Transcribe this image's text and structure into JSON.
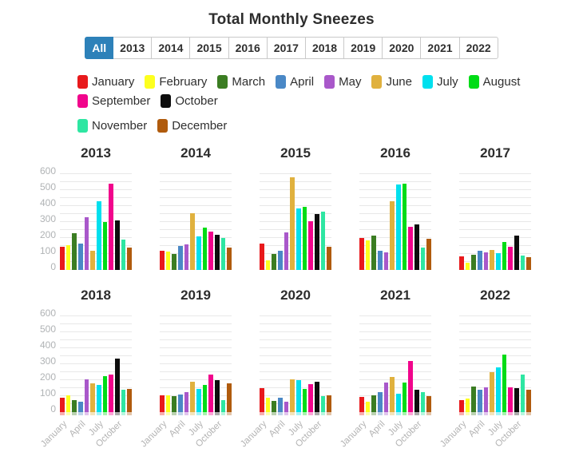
{
  "page": {
    "title": "Total Monthly Sneezes"
  },
  "tabs": {
    "active": "All",
    "items": [
      "All",
      "2013",
      "2014",
      "2015",
      "2016",
      "2017",
      "2018",
      "2019",
      "2020",
      "2021",
      "2022"
    ]
  },
  "months": [
    {
      "label": "January",
      "color": "#e8191c"
    },
    {
      "label": "February",
      "color": "#fdff1f"
    },
    {
      "label": "March",
      "color": "#3b7d22"
    },
    {
      "label": "April",
      "color": "#4a88c6"
    },
    {
      "label": "May",
      "color": "#a958ca"
    },
    {
      "label": "June",
      "color": "#e0b13e"
    },
    {
      "label": "July",
      "color": "#00e0ee"
    },
    {
      "label": "August",
      "color": "#00dc16"
    },
    {
      "label": "September",
      "color": "#f1058c"
    },
    {
      "label": "October",
      "color": "#0d0d0d"
    },
    {
      "label": "November",
      "color": "#2ee6a2"
    },
    {
      "label": "December",
      "color": "#b05b0d"
    }
  ],
  "chart_data": {
    "type": "bar",
    "title": "Total Monthly Sneezes",
    "categories": [
      "January",
      "February",
      "March",
      "April",
      "May",
      "June",
      "July",
      "August",
      "September",
      "October",
      "November",
      "December"
    ],
    "ylim": [
      0,
      600
    ],
    "yticks": [
      600,
      500,
      400,
      300,
      200,
      100,
      0
    ],
    "grid": true,
    "legend_position": "top",
    "x_tick_labels": [
      "January",
      "April",
      "July",
      "October"
    ],
    "x_tick_positions": [
      0,
      3,
      6,
      9
    ],
    "charts": [
      {
        "year": "2013",
        "show_y_axis": true,
        "show_x_labels": false,
        "values": [
          145,
          155,
          230,
          165,
          330,
          120,
          430,
          300,
          540,
          310,
          190,
          140
        ]
      },
      {
        "year": "2014",
        "show_y_axis": false,
        "show_x_labels": false,
        "values": [
          120,
          115,
          100,
          150,
          160,
          355,
          210,
          265,
          240,
          220,
          200,
          140
        ]
      },
      {
        "year": "2015",
        "show_y_axis": false,
        "show_x_labels": false,
        "values": [
          165,
          60,
          100,
          120,
          235,
          580,
          385,
          395,
          305,
          350,
          365,
          145
        ]
      },
      {
        "year": "2016",
        "show_y_axis": false,
        "show_x_labels": false,
        "values": [
          200,
          185,
          215,
          120,
          110,
          430,
          535,
          540,
          270,
          285,
          140,
          195
        ]
      },
      {
        "year": "2017",
        "show_y_axis": false,
        "show_x_labels": false,
        "values": [
          85,
          45,
          95,
          120,
          110,
          125,
          105,
          175,
          145,
          215,
          90,
          80
        ]
      },
      {
        "year": "2018",
        "show_y_axis": true,
        "show_x_labels": true,
        "values": [
          90,
          105,
          75,
          65,
          205,
          180,
          170,
          225,
          235,
          335,
          140,
          145
        ]
      },
      {
        "year": "2019",
        "show_y_axis": false,
        "show_x_labels": true,
        "values": [
          105,
          105,
          100,
          110,
          125,
          190,
          145,
          170,
          235,
          200,
          75,
          180
        ]
      },
      {
        "year": "2020",
        "show_y_axis": false,
        "show_x_labels": true,
        "values": [
          150,
          90,
          70,
          90,
          65,
          205,
          200,
          145,
          175,
          190,
          100,
          105
        ]
      },
      {
        "year": "2021",
        "show_y_axis": false,
        "show_x_labels": true,
        "values": [
          95,
          65,
          105,
          125,
          185,
          220,
          115,
          185,
          320,
          140,
          125,
          100
        ]
      },
      {
        "year": "2022",
        "show_y_axis": false,
        "show_x_labels": true,
        "values": [
          75,
          85,
          160,
          140,
          155,
          250,
          280,
          360,
          155,
          150,
          235,
          140
        ]
      }
    ]
  },
  "colors": {
    "active_tab": "#2d81b9",
    "grid_line": "#e8e8e8",
    "axis_text": "#b0b3b5"
  }
}
